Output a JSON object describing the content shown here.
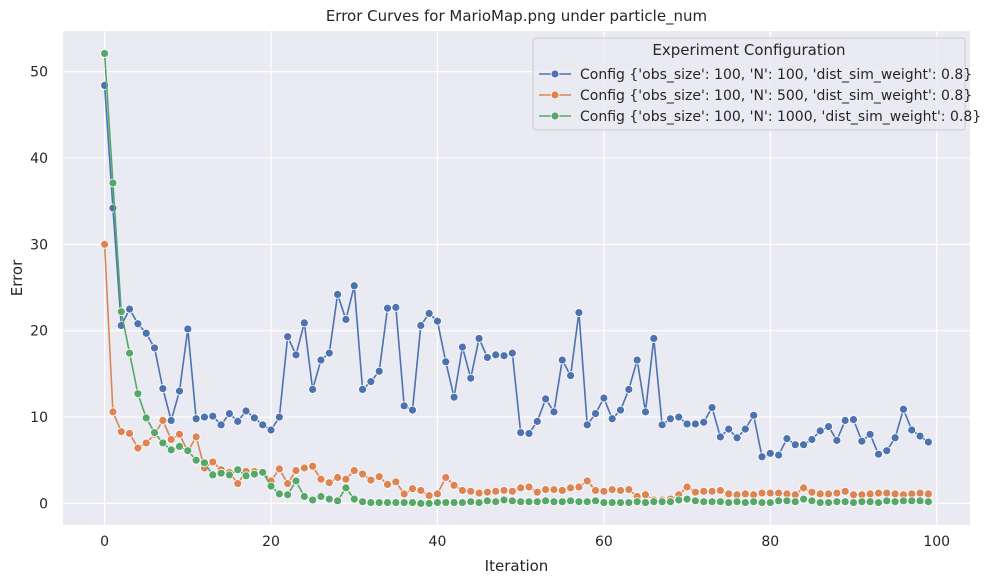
{
  "chart_data": {
    "type": "line",
    "title": "Error Curves for MarioMap.png under particle_num",
    "xlabel": "Iteration",
    "ylabel": "Error",
    "xlim": [
      -5,
      104
    ],
    "ylim": [
      -2.5,
      54.7
    ],
    "xticks": [
      0,
      20,
      40,
      60,
      80,
      100
    ],
    "yticks": [
      0,
      10,
      20,
      30,
      40,
      50
    ],
    "grid": true,
    "legend": {
      "title": "Experiment Configuration",
      "placement": "top-right"
    },
    "series": [
      {
        "name": "Config {'obs_size': 100, 'N': 100, 'dist_sim_weight': 0.8}",
        "color": "#4c72b0",
        "values": [
          48.4,
          34.2,
          20.6,
          22.5,
          20.8,
          19.7,
          18.0,
          13.3,
          9.6,
          13.0,
          20.2,
          9.8,
          10.0,
          10.1,
          9.1,
          10.4,
          9.5,
          10.7,
          9.9,
          9.1,
          8.5,
          10.0,
          19.3,
          17.2,
          20.9,
          13.2,
          16.6,
          17.4,
          24.2,
          21.3,
          25.2,
          13.2,
          14.1,
          15.3,
          22.6,
          22.7,
          11.3,
          10.8,
          20.6,
          22.0,
          21.1,
          16.4,
          12.3,
          18.1,
          14.5,
          19.1,
          16.9,
          17.2,
          17.1,
          17.4,
          8.2,
          8.1,
          9.5,
          12.1,
          10.6,
          16.6,
          14.8,
          22.1,
          9.1,
          10.4,
          12.2,
          9.8,
          10.8,
          13.2,
          16.6,
          10.6,
          19.1,
          9.1,
          9.8,
          10.0,
          9.2,
          9.2,
          9.4,
          11.1,
          7.7,
          8.6,
          7.6,
          8.6,
          10.2,
          5.4,
          5.8,
          5.6,
          7.5,
          6.8,
          6.8,
          7.4,
          8.4,
          8.9,
          7.3,
          9.6,
          9.7,
          7.2,
          8.0,
          5.7,
          6.1,
          7.6,
          10.9,
          8.5,
          7.8,
          7.1
        ]
      },
      {
        "name": "Config {'obs_size': 100, 'N': 500, 'dist_sim_weight': 0.8}",
        "color": "#dd8452",
        "values": [
          30.0,
          10.6,
          8.3,
          8.1,
          6.4,
          7.0,
          8.0,
          9.6,
          7.4,
          8.0,
          6.0,
          7.7,
          4.1,
          4.8,
          3.9,
          3.6,
          2.3,
          3.7,
          3.7,
          3.6,
          2.6,
          4.0,
          2.3,
          3.8,
          4.1,
          4.3,
          2.8,
          2.4,
          3.0,
          2.8,
          3.8,
          3.4,
          2.7,
          3.1,
          2.2,
          2.5,
          1.1,
          1.7,
          1.5,
          0.9,
          1.1,
          3.0,
          2.1,
          1.5,
          1.4,
          1.2,
          1.3,
          1.4,
          1.5,
          1.4,
          1.8,
          1.9,
          1.3,
          1.6,
          1.6,
          1.5,
          1.8,
          1.9,
          2.6,
          1.5,
          1.4,
          1.6,
          1.5,
          1.6,
          0.8,
          1.0,
          0.4,
          0.4,
          0.5,
          1.0,
          1.9,
          1.3,
          1.4,
          1.4,
          1.5,
          1.1,
          1.0,
          1.1,
          1.0,
          1.2,
          1.2,
          1.2,
          1.1,
          1.0,
          1.8,
          1.3,
          1.1,
          1.1,
          1.2,
          1.4,
          1.0,
          1.0,
          1.1,
          1.2,
          1.2,
          1.1,
          1.0,
          1.1,
          1.2,
          1.1
        ]
      },
      {
        "name": "Config {'obs_size': 100, 'N': 1000, 'dist_sim_weight': 0.8}",
        "color": "#55a868",
        "values": [
          52.1,
          37.1,
          22.2,
          17.4,
          12.7,
          9.9,
          8.2,
          7.0,
          6.2,
          6.6,
          6.1,
          5.0,
          4.7,
          3.3,
          3.5,
          3.3,
          3.9,
          3.2,
          3.4,
          3.6,
          2.0,
          1.1,
          1.0,
          2.6,
          0.8,
          0.4,
          0.8,
          0.5,
          0.3,
          1.8,
          0.5,
          0.2,
          0.1,
          0.1,
          0.1,
          0.1,
          0.1,
          0.1,
          0.0,
          0.0,
          0.1,
          0.1,
          0.1,
          0.1,
          0.2,
          0.1,
          0.3,
          0.2,
          0.4,
          0.3,
          0.2,
          0.2,
          0.2,
          0.3,
          0.2,
          0.2,
          0.3,
          0.2,
          0.2,
          0.3,
          0.1,
          0.1,
          0.1,
          0.1,
          0.2,
          0.1,
          0.2,
          0.2,
          0.2,
          0.4,
          0.5,
          0.3,
          0.2,
          0.2,
          0.2,
          0.1,
          0.2,
          0.1,
          0.2,
          0.1,
          0.1,
          0.3,
          0.3,
          0.2,
          0.5,
          0.3,
          0.1,
          0.1,
          0.2,
          0.2,
          0.1,
          0.2,
          0.2,
          0.1,
          0.3,
          0.2,
          0.3,
          0.3,
          0.3,
          0.2
        ]
      }
    ]
  }
}
